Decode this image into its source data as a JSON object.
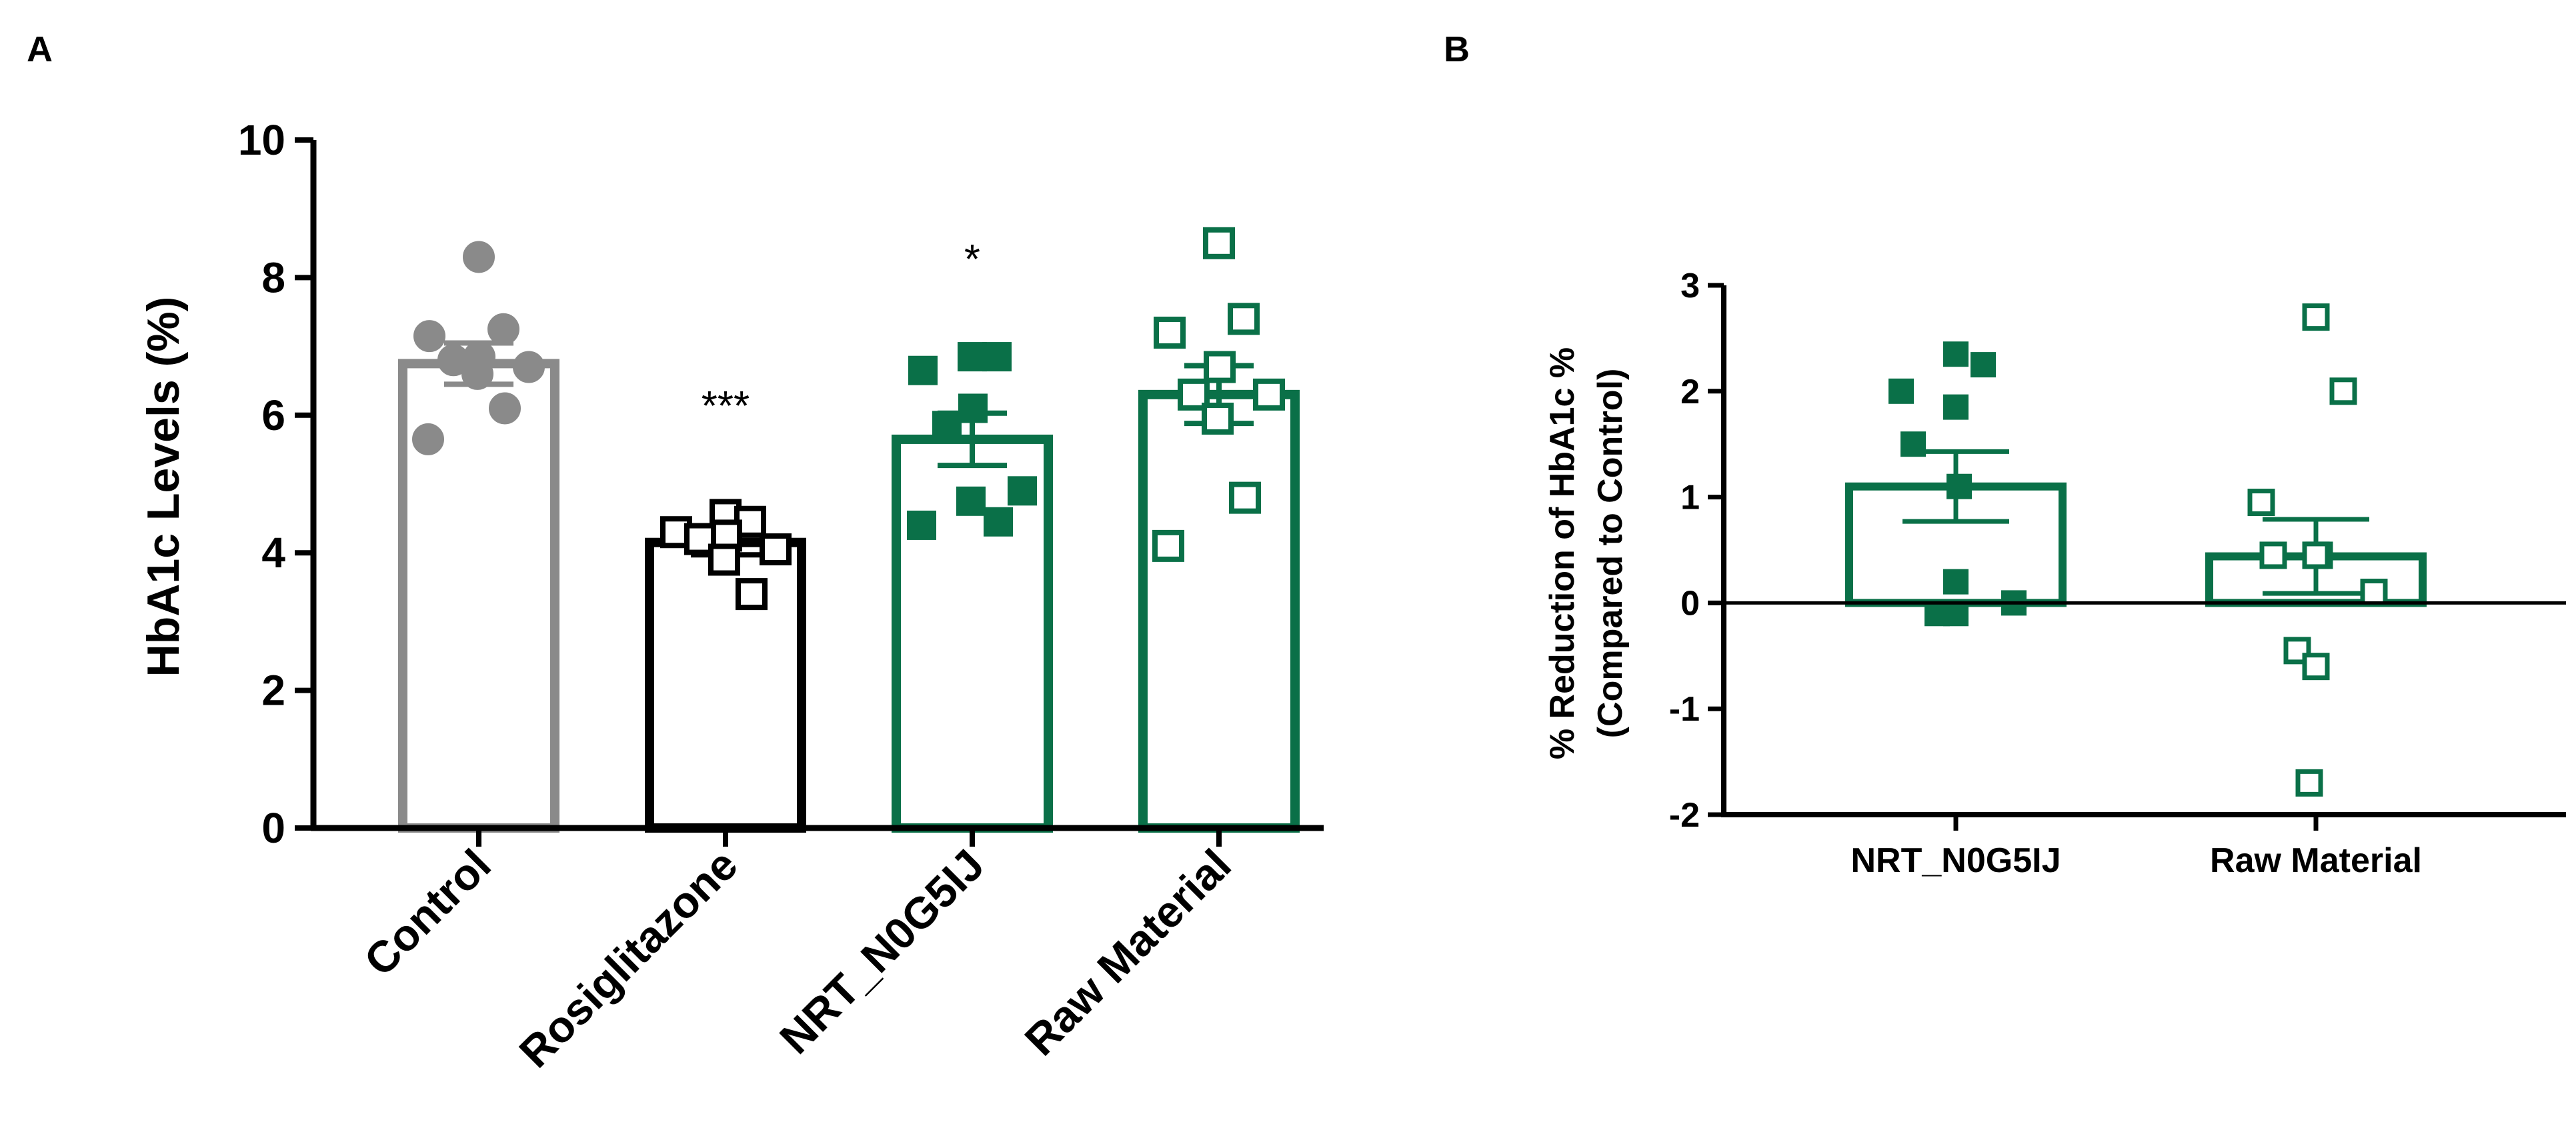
{
  "panels": {
    "a_label": "A",
    "b_label": "B"
  },
  "colors": {
    "control": "#8a8a8a",
    "rosiglitazone": "#000000",
    "green": "#0a7048",
    "axis": "#000000"
  },
  "chart_data": [
    {
      "panel": "A",
      "type": "bar",
      "ylabel": "HbA1c Levels (%)",
      "xlabel": "",
      "ylim": [
        0,
        10
      ],
      "yticks": [
        0,
        2,
        4,
        6,
        8,
        10
      ],
      "ytick_labels": [
        "0",
        "2",
        "4",
        "6",
        "8",
        "10"
      ],
      "categories": [
        "Control",
        "Rosiglitazone",
        "NRT_N0G5IJ",
        "Raw Material"
      ],
      "values": [
        6.75,
        4.15,
        5.65,
        6.3
      ],
      "sem": [
        0.3,
        0.18,
        0.38,
        0.42
      ],
      "significance": [
        "",
        "***",
        "*",
        ""
      ],
      "marker_fill": [
        "filled",
        "open",
        "filled",
        "open"
      ],
      "marker_shape": [
        "circle",
        "square",
        "square",
        "square"
      ],
      "points": [
        [
          8.3,
          7.25,
          7.15,
          6.85,
          6.8,
          6.7,
          6.6,
          6.1,
          5.65
        ],
        [
          4.55,
          4.45,
          4.3,
          4.25,
          4.2,
          4.05,
          3.9,
          3.4
        ],
        [
          6.85,
          6.85,
          6.65,
          6.1,
          5.85,
          4.9,
          4.75,
          4.45,
          4.4
        ],
        [
          8.5,
          7.4,
          7.2,
          6.7,
          6.3,
          6.3,
          5.95,
          4.8,
          4.1
        ]
      ]
    },
    {
      "panel": "B",
      "type": "bar",
      "ylabel": "% Reduction of HbA1c %",
      "ylabel2": "(Compared to Control)",
      "xlabel": "",
      "ylim": [
        -2,
        3
      ],
      "yticks": [
        -2,
        -1,
        0,
        1,
        2,
        3
      ],
      "ytick_labels": [
        "-2",
        "-1",
        "0",
        "1",
        "2",
        "3"
      ],
      "categories": [
        "NRT_N0G5IJ",
        "Raw Material"
      ],
      "values": [
        1.1,
        0.44
      ],
      "sem": [
        0.33,
        0.35
      ],
      "marker_fill": [
        "filled",
        "open"
      ],
      "marker_shape": [
        "square",
        "square"
      ],
      "points": [
        [
          2.35,
          2.25,
          2.0,
          1.85,
          1.5,
          1.1,
          0.2,
          0.0,
          -0.1,
          -0.1
        ],
        [
          2.7,
          2.0,
          0.95,
          0.45,
          0.45,
          0.45,
          0.45,
          0.1,
          -0.45,
          -0.6,
          -1.7
        ]
      ]
    }
  ]
}
